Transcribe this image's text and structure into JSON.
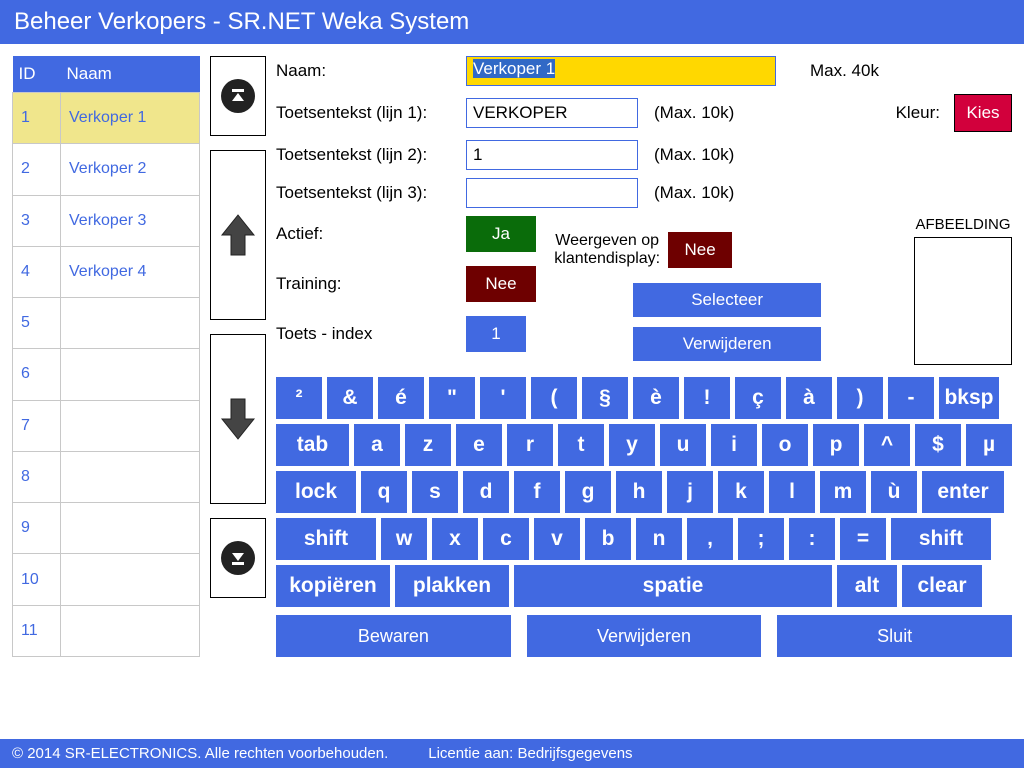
{
  "title": "Beheer Verkopers - SR.NET Weka System",
  "table": {
    "col_id": "ID",
    "col_naam": "Naam",
    "rows": [
      {
        "id": "1",
        "naam": "Verkoper 1",
        "selected": true
      },
      {
        "id": "2",
        "naam": "Verkoper 2"
      },
      {
        "id": "3",
        "naam": "Verkoper 3"
      },
      {
        "id": "4",
        "naam": "Verkoper 4"
      },
      {
        "id": "5",
        "naam": ""
      },
      {
        "id": "6",
        "naam": ""
      },
      {
        "id": "7",
        "naam": ""
      },
      {
        "id": "8",
        "naam": ""
      },
      {
        "id": "9",
        "naam": ""
      },
      {
        "id": "10",
        "naam": ""
      },
      {
        "id": "11",
        "naam": ""
      }
    ]
  },
  "form": {
    "naam_label": "Naam:",
    "naam_value": "Verkoper 1",
    "naam_hint": "Max. 40k",
    "t1_label": "Toetsentekst (lijn 1):",
    "t1_value": "VERKOPER",
    "t1_hint": "(Max. 10k)",
    "t2_label": "Toetsentekst (lijn 2):",
    "t2_value": "1",
    "t2_hint": "(Max. 10k)",
    "t3_label": "Toetsentekst (lijn 3):",
    "t3_value": "",
    "t3_hint": "(Max. 10k)",
    "kleur_label": "Kleur:",
    "kleur_btn": "Kies",
    "actief_label": "Actief:",
    "actief_value": "Ja",
    "training_label": "Training:",
    "training_value": "Nee",
    "toetsindex_label": "Toets - index",
    "toetsindex_value": "1",
    "weergeven_label1": "Weergeven op",
    "weergeven_label2": "klantendisplay:",
    "weergeven_value": "Nee",
    "afbeelding_label": "AFBEELDING",
    "selecteer": "Selecteer",
    "verwijderen_img": "Verwijderen"
  },
  "keyboard": {
    "r1": [
      "²",
      "&",
      "é",
      "\"",
      "'",
      "(",
      "§",
      "è",
      "!",
      "ç",
      "à",
      ")",
      "-",
      "bksp"
    ],
    "r2": [
      "tab",
      "a",
      "z",
      "e",
      "r",
      "t",
      "y",
      "u",
      "i",
      "o",
      "p",
      "^",
      "$",
      "µ"
    ],
    "r3": [
      "lock",
      "q",
      "s",
      "d",
      "f",
      "g",
      "h",
      "j",
      "k",
      "l",
      "m",
      "ù",
      "enter"
    ],
    "r4": [
      "shift",
      "w",
      "x",
      "c",
      "v",
      "b",
      "n",
      ",",
      ";",
      ":",
      "=",
      "shift"
    ],
    "r5": [
      "kopiëren",
      "plakken",
      "spatie",
      "alt",
      "clear"
    ]
  },
  "actions": {
    "bewaren": "Bewaren",
    "verwijderen": "Verwijderen",
    "sluit": "Sluit"
  },
  "footer": {
    "copyright": "© 2014 SR-ELECTRONICS. Alle rechten voorbehouden.",
    "licentie": "Licentie aan: Bedrijfsgegevens"
  },
  "colors": {
    "primary": "#4169e1",
    "highlight": "#f0e68c",
    "naam_bg": "#ffd800",
    "green": "#0a6c0a",
    "darkred": "#6e0000",
    "crimson": "#d2003c"
  }
}
